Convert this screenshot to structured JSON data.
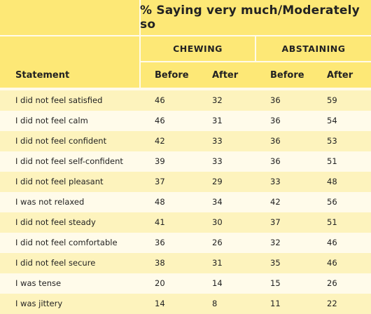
{
  "header": {
    "title": "% Saying very much/Moderately so",
    "groups": [
      "CHEWING",
      "ABSTAINING"
    ],
    "columns": [
      "Statement",
      "Before",
      "After",
      "Before",
      "After"
    ]
  },
  "rows": [
    {
      "statement": "I did not feel satisfied",
      "values": [
        "46",
        "32",
        "36",
        "59"
      ]
    },
    {
      "statement": "I did not feel calm",
      "values": [
        "46",
        "31",
        "36",
        "54"
      ]
    },
    {
      "statement": "I did not feel confident",
      "values": [
        "42",
        "33",
        "36",
        "53"
      ]
    },
    {
      "statement": "I did not feel self-confident",
      "values": [
        "39",
        "33",
        "36",
        "51"
      ]
    },
    {
      "statement": "I did not feel pleasant",
      "values": [
        "37",
        "29",
        "33",
        "48"
      ]
    },
    {
      "statement": "I was not relaxed",
      "values": [
        "48",
        "34",
        "42",
        "56"
      ]
    },
    {
      "statement": "I did not feel steady",
      "values": [
        "41",
        "30",
        "37",
        "51"
      ]
    },
    {
      "statement": "I did not feel comfortable",
      "values": [
        "36",
        "26",
        "32",
        "46"
      ]
    },
    {
      "statement": "I did not feel secure",
      "values": [
        "38",
        "31",
        "35",
        "46"
      ]
    },
    {
      "statement": "I was tense",
      "values": [
        "20",
        "14",
        "15",
        "26"
      ]
    },
    {
      "statement": "I was jittery",
      "values": [
        "14",
        "8",
        "11",
        "22"
      ]
    }
  ]
}
